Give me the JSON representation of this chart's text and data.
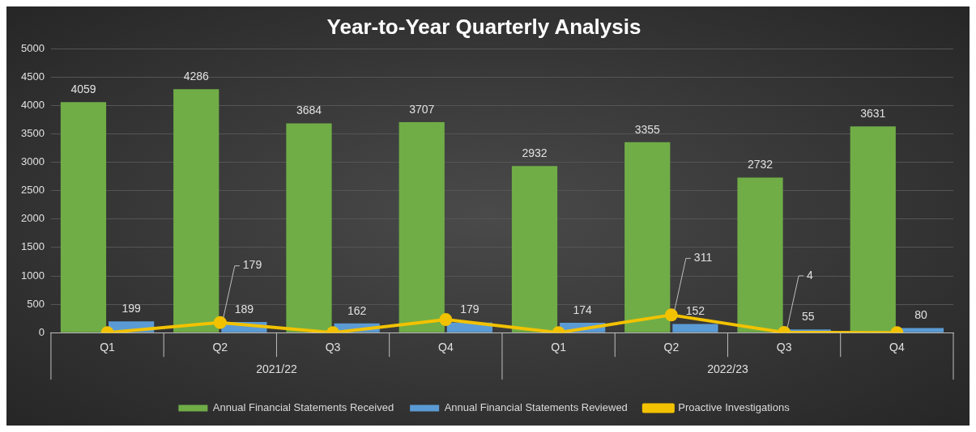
{
  "chart_data": {
    "type": "bar",
    "title": "Year-to-Year Quarterly Analysis",
    "categories": [
      "Q1",
      "Q2",
      "Q3",
      "Q4",
      "Q1",
      "Q2",
      "Q3",
      "Q4"
    ],
    "series": [
      {
        "name": "Annual Financial Statements Received",
        "color": "#70ad47",
        "values": [
          4059,
          4286,
          3684,
          3707,
          2932,
          3355,
          2732,
          3631
        ],
        "value_labels": [
          "4059",
          "4286",
          "3684",
          "3707",
          "2932",
          "3355",
          "2732",
          "3631"
        ]
      },
      {
        "name": "Annual Financial Statements Reviewed",
        "color": "#5b9bd5",
        "values": [
          199,
          189,
          162,
          179,
          174,
          152,
          55,
          80
        ],
        "value_labels": [
          "199",
          "189",
          "162",
          "179",
          "174",
          "152",
          "55",
          "80"
        ]
      },
      {
        "name": "Proactive Investigations",
        "type": "line",
        "color": "#f2c200",
        "values": [
          0,
          179,
          0,
          230,
          0,
          311,
          4,
          0
        ],
        "value_labels": [
          null,
          "179",
          null,
          null,
          null,
          "311",
          "4",
          null
        ]
      }
    ],
    "annotations": [
      "2021/22",
      "2022/23"
    ],
    "ylim": [
      0,
      5000
    ],
    "yticks": [
      0,
      500,
      1000,
      1500,
      2000,
      2500,
      3000,
      3500,
      4000,
      4500,
      5000
    ],
    "grid": "y",
    "legend": "bottom",
    "marker": "circle",
    "line_style": "solid"
  }
}
